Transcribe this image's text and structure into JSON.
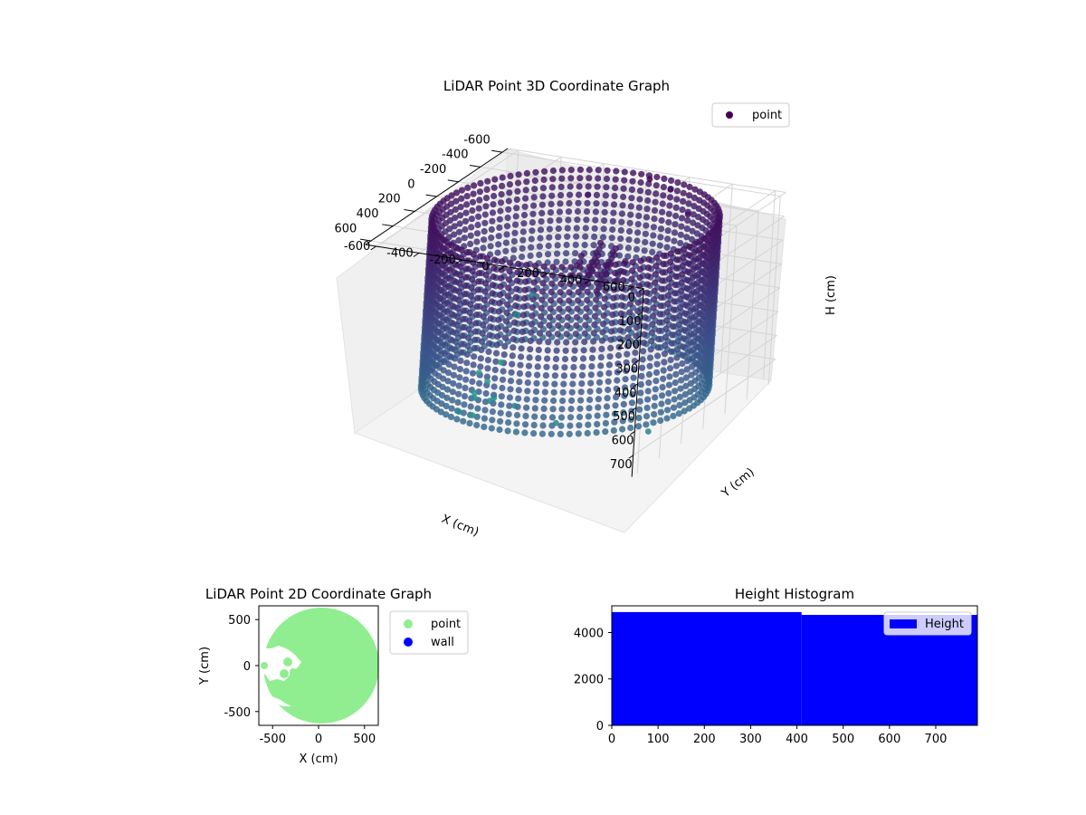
{
  "chart_data": [
    {
      "type": "scatter",
      "title": "LiDAR Point 3D Coordinate Graph",
      "xlabel": "X (cm)",
      "ylabel": "Y (cm)",
      "zlabel": "H (cm)",
      "xlim": [
        -650,
        650
      ],
      "ylim": [
        -650,
        650
      ],
      "zlim": [
        0,
        790
      ],
      "x_ticks": [
        "-600",
        "-400",
        "-200",
        "0",
        "200",
        "400",
        "600"
      ],
      "y_ticks": [
        "-600",
        "-400",
        "-200",
        "0",
        "200",
        "400",
        "600"
      ],
      "z_ticks": [
        "0",
        "100",
        "200",
        "300",
        "400",
        "500",
        "600",
        "700"
      ],
      "legend": [
        "point"
      ],
      "legend_loc": "upper-right",
      "colormap": "viridis",
      "grid": true,
      "structure": "cylindrical wall of points, radius about 600 cm, spanning heights 0 to 700 cm, plus scattered outlier points",
      "outliers": [
        {
          "x": -640,
          "y": 120,
          "h": 60
        },
        {
          "x": -560,
          "y": 60,
          "h": 0
        },
        {
          "x": -600,
          "y": -240,
          "h": 120
        },
        {
          "x": -450,
          "y": 300,
          "h": 80
        },
        {
          "x": -620,
          "y": -480,
          "h": 580
        },
        {
          "x": -560,
          "y": -520,
          "h": 650
        },
        {
          "x": -300,
          "y": -450,
          "h": 760
        },
        {
          "x": -120,
          "y": -420,
          "h": 780
        },
        {
          "x": 80,
          "y": -380,
          "h": 760
        },
        {
          "x": 300,
          "y": -200,
          "h": 700
        },
        {
          "x": 560,
          "y": 240,
          "h": 650
        },
        {
          "x": 520,
          "y": 650,
          "h": 640
        },
        {
          "x": 240,
          "y": -300,
          "h": 720
        },
        {
          "x": 420,
          "y": -280,
          "h": 720
        },
        {
          "x": 260,
          "y": -200,
          "h": 700
        },
        {
          "x": 330,
          "y": -260,
          "h": 760
        },
        {
          "x": -200,
          "y": -500,
          "h": 780
        },
        {
          "x": 470,
          "y": 0,
          "h": 640
        }
      ]
    },
    {
      "type": "scatter",
      "title": "LiDAR Point 2D Coordinate Graph",
      "xlabel": "X (cm)",
      "ylabel": "Y (cm)",
      "xlim": [
        -650,
        650
      ],
      "ylim": [
        -650,
        650
      ],
      "x_ticks": [
        "-500",
        "0",
        "500"
      ],
      "y_ticks": [
        "500",
        "0",
        "-500"
      ],
      "series": [
        {
          "name": "point",
          "color": "#90ee90"
        },
        {
          "name": "wall",
          "color": "#0000ff"
        }
      ],
      "legend_loc": "outside-right",
      "structure": "filled disk of points with radius about 600 cm and a hollow region near x -500 to -150, y -80 to 150"
    },
    {
      "type": "bar",
      "title": "Height Histogram",
      "xlabel": "",
      "ylabel": "",
      "xlim": [
        0,
        790
      ],
      "ylim": [
        0,
        5150
      ],
      "x_ticks": [
        "0",
        "100",
        "200",
        "300",
        "400",
        "500",
        "600",
        "700"
      ],
      "y_ticks": [
        "0",
        "2000",
        "4000"
      ],
      "series": [
        {
          "name": "Height",
          "color": "#0000ff"
        }
      ],
      "bins": [
        {
          "start": 0,
          "end": 410,
          "count": 4880
        },
        {
          "start": 410,
          "end": 790,
          "count": 4760
        }
      ],
      "legend_loc": "upper-right"
    }
  ]
}
